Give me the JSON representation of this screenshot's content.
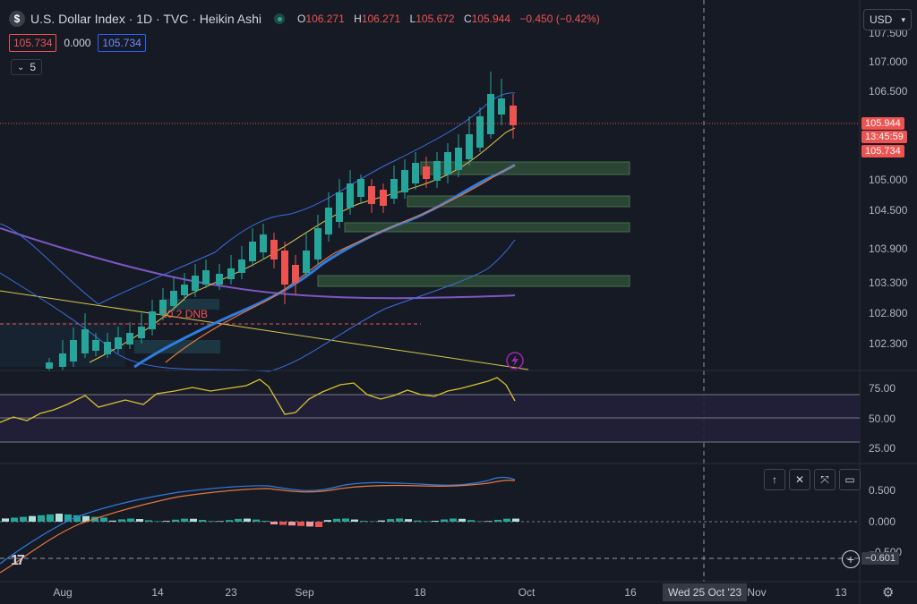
{
  "legend": {
    "symbol_icon": "$",
    "title": "U.S. Dollar Index · 1D · TVC · Heikin Ashi",
    "open_k": "O",
    "open_v": "106.271",
    "high_k": "H",
    "high_v": "106.271",
    "low_k": "L",
    "low_v": "105.672",
    "close_k": "C",
    "close_v": "105.944",
    "change": "−0.450 (−0.42%)"
  },
  "indicator_row": {
    "val1": "105.734",
    "val2": "0.000",
    "val3": "105.734"
  },
  "collapse": {
    "count": "5"
  },
  "currency": {
    "label": "USD"
  },
  "price_axis": {
    "ticks": [
      "107.500",
      "107.000",
      "106.500",
      "105.000",
      "104.500",
      "103.900",
      "103.300",
      "102.800",
      "102.300"
    ],
    "current_price": "105.944",
    "countdown": "13:45:59",
    "ma_value": "105.734"
  },
  "rsi_axis": {
    "ticks": [
      "75.00",
      "50.00",
      "25.00"
    ]
  },
  "macd_axis": {
    "ticks": [
      "0.500",
      "0.000",
      "−0.500"
    ],
    "crosshair_value": "−0.601"
  },
  "time_axis": {
    "ticks": [
      "Aug",
      "14",
      "23",
      "Sep",
      "18",
      "Oct",
      "16",
      "Nov",
      "13"
    ],
    "crosshair_date": "Wed 25 Oct '23"
  },
  "annotation": {
    "dnb": "10.2 DNB"
  },
  "colors": {
    "up": "#26a69a",
    "down": "#ef5350",
    "bg": "#161a25"
  },
  "pane_buttons": [
    "arrow-up-icon",
    "close-icon",
    "collapse-icon",
    "restore-icon"
  ]
}
